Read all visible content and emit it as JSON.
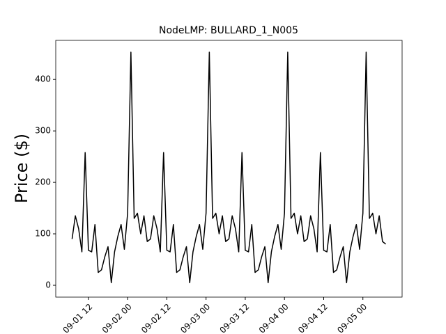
{
  "chart_data": {
    "type": "line",
    "title": "NodeLMP: BULLARD_1_N005",
    "y_label": "Price ($)",
    "color": "#000000",
    "x": [
      "09-01 07",
      "09-01 08",
      "09-01 09",
      "09-01 10",
      "09-01 11",
      "09-01 12",
      "09-01 13",
      "09-01 14",
      "09-01 15",
      "09-01 16",
      "09-01 17",
      "09-01 18",
      "09-01 19",
      "09-01 20",
      "09-01 21",
      "09-01 22",
      "09-01 23",
      "09-02 00",
      "09-02 01",
      "09-02 02",
      "09-02 03",
      "09-02 04",
      "09-02 05",
      "09-02 06",
      "09-02 07",
      "09-02 08",
      "09-02 09",
      "09-02 10",
      "09-02 11",
      "09-02 12",
      "09-02 13",
      "09-02 14",
      "09-02 15",
      "09-02 16",
      "09-02 17",
      "09-02 18",
      "09-02 19",
      "09-02 20",
      "09-02 21",
      "09-02 22",
      "09-02 23",
      "09-03 00",
      "09-03 01",
      "09-03 02",
      "09-03 03",
      "09-03 04",
      "09-03 05",
      "09-03 06",
      "09-03 07",
      "09-03 08",
      "09-03 09",
      "09-03 10",
      "09-03 11",
      "09-03 12",
      "09-03 13",
      "09-03 14",
      "09-03 15",
      "09-03 16",
      "09-03 17",
      "09-03 18",
      "09-03 19",
      "09-03 20",
      "09-03 21",
      "09-03 22",
      "09-03 23",
      "09-04 00",
      "09-04 01",
      "09-04 02",
      "09-04 03",
      "09-04 04",
      "09-04 05",
      "09-04 06",
      "09-04 07",
      "09-04 08",
      "09-04 09",
      "09-04 10",
      "09-04 11",
      "09-04 12",
      "09-04 13",
      "09-04 14",
      "09-04 15",
      "09-04 16",
      "09-04 17",
      "09-04 18",
      "09-04 19",
      "09-04 20",
      "09-04 21",
      "09-04 22",
      "09-04 23",
      "09-05 00",
      "09-05 01",
      "09-05 02",
      "09-05 03",
      "09-05 04",
      "09-05 05",
      "09-05 06",
      "09-05 07"
    ],
    "values": [
      90,
      135,
      110,
      65,
      258,
      68,
      65,
      118,
      25,
      30,
      55,
      75,
      5,
      65,
      95,
      118,
      70,
      140,
      453,
      130,
      140,
      100,
      135,
      85,
      90,
      135,
      110,
      65,
      258,
      68,
      65,
      118,
      25,
      30,
      55,
      75,
      5,
      65,
      95,
      118,
      70,
      140,
      453,
      130,
      140,
      100,
      135,
      85,
      90,
      135,
      110,
      65,
      258,
      68,
      65,
      118,
      25,
      30,
      55,
      75,
      5,
      65,
      95,
      118,
      70,
      140,
      453,
      130,
      140,
      100,
      135,
      85,
      90,
      135,
      110,
      65,
      258,
      68,
      65,
      118,
      25,
      30,
      55,
      75,
      5,
      65,
      95,
      118,
      70,
      140,
      453,
      130,
      140,
      100,
      135,
      85,
      80
    ],
    "xlim": [
      "09-01 02",
      "09-05 12"
    ],
    "xticks": [
      "09-01 12",
      "09-02 00",
      "09-02 12",
      "09-03 00",
      "09-03 12",
      "09-04 00",
      "09-04 12",
      "09-05 00"
    ],
    "ylim": [
      -23,
      476
    ],
    "yticks": [
      0,
      100,
      200,
      300,
      400
    ]
  }
}
